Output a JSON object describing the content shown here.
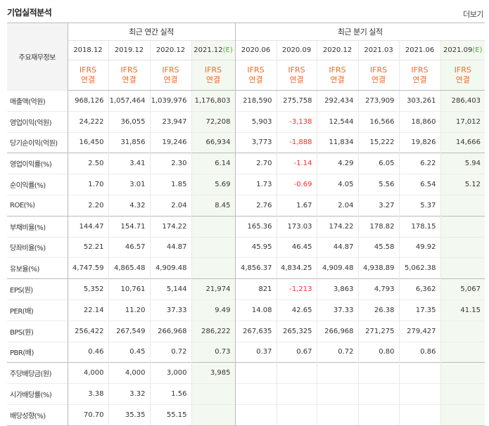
{
  "section": {
    "title": "기업실적분석",
    "more_label": "더보기"
  },
  "header": {
    "row_label": "주요재무정보",
    "annual_group": "최근 연간 실적",
    "quarterly_group": "최근 분기 실적",
    "annual_periods": [
      {
        "label": "2018.12",
        "mark": ""
      },
      {
        "label": "2019.12",
        "mark": ""
      },
      {
        "label": "2020.12",
        "mark": ""
      },
      {
        "label": "2021.12",
        "mark": "(E)"
      }
    ],
    "quarterly_periods": [
      {
        "label": "2020.06",
        "mark": ""
      },
      {
        "label": "2020.09",
        "mark": ""
      },
      {
        "label": "2020.12",
        "mark": ""
      },
      {
        "label": "2021.03",
        "mark": ""
      },
      {
        "label": "2021.06",
        "mark": ""
      },
      {
        "label": "2021.09",
        "mark": "(E)"
      }
    ],
    "standard": "IFRS",
    "basis": "연결"
  },
  "rows": [
    {
      "label": "매출액(억원)",
      "values": [
        "968,126",
        "1,057,464",
        "1,039,976",
        "1,176,803",
        "218,590",
        "275,758",
        "292,434",
        "273,909",
        "303,261",
        "286,403"
      ]
    },
    {
      "label": "영업이익(억원)",
      "values": [
        "24,222",
        "36,055",
        "23,947",
        "72,208",
        "5,903",
        "-3,138",
        "12,544",
        "16,566",
        "18,860",
        "17,012"
      ]
    },
    {
      "label": "당기순이익(억원)",
      "values": [
        "16,450",
        "31,856",
        "19,246",
        "66,934",
        "3,773",
        "-1,888",
        "11,834",
        "15,222",
        "19,826",
        "14,666"
      ]
    },
    {
      "label": "영업이익률(%)",
      "values": [
        "2.50",
        "3.41",
        "2.30",
        "6.14",
        "2.70",
        "-1.14",
        "4.29",
        "6.05",
        "6.22",
        "5.94"
      ]
    },
    {
      "label": "순이익률(%)",
      "values": [
        "1.70",
        "3.01",
        "1.85",
        "5.69",
        "1.73",
        "-0.69",
        "4.05",
        "5.56",
        "6.54",
        "5.12"
      ]
    },
    {
      "label": "ROE(%)",
      "values": [
        "2.20",
        "4.32",
        "2.04",
        "8.45",
        "2.76",
        "1.67",
        "2.04",
        "3.27",
        "5.37",
        ""
      ]
    },
    {
      "label": "부채비율(%)",
      "values": [
        "144.47",
        "154.71",
        "174.22",
        "",
        "165.36",
        "173.03",
        "174.22",
        "178.82",
        "178.15",
        ""
      ]
    },
    {
      "label": "당좌비율(%)",
      "values": [
        "52.21",
        "46.57",
        "44.87",
        "",
        "45.95",
        "46.45",
        "44.87",
        "45.58",
        "49.92",
        ""
      ]
    },
    {
      "label": "유보율(%)",
      "values": [
        "4,747.59",
        "4,865.48",
        "4,909.48",
        "",
        "4,856.37",
        "4,834.25",
        "4,909.48",
        "4,938.89",
        "5,062.38",
        ""
      ]
    },
    {
      "label": "EPS(원)",
      "values": [
        "5,352",
        "10,761",
        "5,144",
        "21,974",
        "821",
        "-1,213",
        "3,863",
        "4,793",
        "6,362",
        "5,067"
      ]
    },
    {
      "label": "PER(배)",
      "values": [
        "22.14",
        "11.20",
        "37.33",
        "9.49",
        "14.08",
        "42.65",
        "37.33",
        "26.38",
        "17.35",
        "41.15"
      ]
    },
    {
      "label": "BPS(원)",
      "values": [
        "256,422",
        "267,549",
        "266,968",
        "286,222",
        "267,635",
        "265,325",
        "266,968",
        "271,275",
        "279,427",
        ""
      ]
    },
    {
      "label": "PBR(배)",
      "values": [
        "0.46",
        "0.45",
        "0.72",
        "0.73",
        "0.37",
        "0.67",
        "0.72",
        "0.80",
        "0.86",
        ""
      ]
    },
    {
      "label": "주당배당금(원)",
      "values": [
        "4,000",
        "4,000",
        "3,000",
        "3,985",
        "",
        "",
        "",
        "",
        "",
        ""
      ]
    },
    {
      "label": "시가배당률(%)",
      "values": [
        "3.38",
        "3.32",
        "1.56",
        "",
        "",
        "",
        "",
        "",
        "",
        ""
      ]
    },
    {
      "label": "배당성향(%)",
      "values": [
        "70.70",
        "35.35",
        "55.15",
        "",
        "",
        "",
        "",
        "",
        "",
        ""
      ]
    }
  ],
  "group_start_rows": [
    0,
    3,
    6,
    9,
    13
  ],
  "colors": {
    "negative": "#ff2a2a",
    "ifrs": "#f26a23",
    "estimate_bg": "#f3f9f1",
    "estimate_mark": "#5aa33c"
  }
}
